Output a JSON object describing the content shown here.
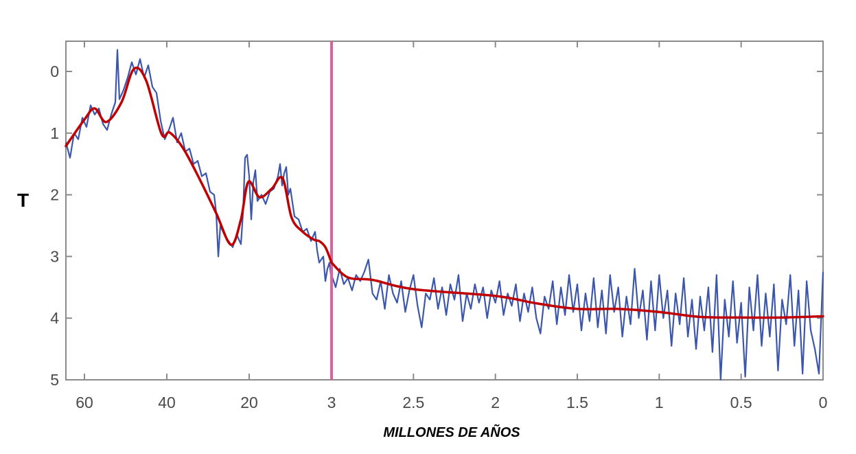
{
  "chart_data": {
    "type": "line",
    "title": "",
    "xlabel": "MILLONES DE AÑOS",
    "ylabel": "T",
    "ylim": [
      -0.5,
      5
    ],
    "y_inverted": true,
    "y_ticks": [
      "0",
      "1",
      "2",
      "3",
      "4",
      "5"
    ],
    "x_segments": [
      {
        "range": [
          64.5,
          0
        ],
        "ticks": [
          "60",
          "40",
          "20"
        ],
        "tick_values": [
          60,
          40,
          20
        ]
      },
      {
        "range": [
          3,
          0
        ],
        "ticks": [
          "3",
          "2.5",
          "2",
          "1.5",
          "1",
          "0.5",
          "0"
        ],
        "tick_values": [
          3,
          2.5,
          2,
          1.5,
          1,
          0.5,
          0
        ]
      }
    ],
    "divider_at": "3",
    "grid": false,
    "colors": {
      "raw": "#3b56aa",
      "smooth": "#c00000",
      "divider": "#e0609f",
      "axis": "#8a8a8a"
    },
    "series": [
      {
        "name": "raw-left",
        "segment": 0,
        "x": [
          64.5,
          63.5,
          62.5,
          61.5,
          60.5,
          59.5,
          58.5,
          57.5,
          56.5,
          55.5,
          54.5,
          53.5,
          52.5,
          52,
          51.5,
          50.5,
          49.5,
          48.5,
          47.5,
          46.5,
          45.5,
          44.5,
          43.5,
          42.5,
          41.5,
          40.5,
          39.5,
          38.5,
          37.5,
          36.5,
          35.5,
          34.5,
          33.5,
          32.5,
          31.5,
          30.5,
          29.5,
          28.5,
          28,
          27.5,
          27,
          26,
          25,
          24,
          23,
          22,
          21.5,
          21,
          20.5,
          20,
          19.5,
          19,
          18.5,
          18,
          17,
          16,
          15,
          14,
          13,
          12.5,
          12,
          11.5,
          11,
          10.5,
          10,
          9,
          8,
          7,
          6,
          5,
          4,
          3.5,
          3,
          2,
          1.5,
          1,
          0.5,
          0
        ],
        "y": [
          1.15,
          1.4,
          1.0,
          1.1,
          0.75,
          0.9,
          0.55,
          0.7,
          0.6,
          0.85,
          0.95,
          0.7,
          0.5,
          -0.35,
          0.45,
          0.3,
          0.1,
          -0.15,
          0.05,
          -0.2,
          0.1,
          -0.1,
          0.25,
          0.35,
          0.8,
          1.1,
          0.95,
          0.75,
          1.15,
          1.0,
          1.3,
          1.25,
          1.5,
          1.45,
          1.7,
          1.65,
          1.95,
          2.0,
          2.3,
          3.0,
          2.5,
          2.65,
          2.75,
          2.85,
          2.65,
          2.8,
          2.3,
          1.4,
          1.35,
          1.7,
          2.4,
          1.8,
          1.6,
          2.1,
          2.0,
          2.15,
          1.95,
          1.9,
          1.7,
          1.5,
          1.85,
          1.65,
          1.55,
          2.0,
          1.9,
          2.35,
          2.4,
          2.6,
          2.55,
          2.75,
          2.6,
          2.9,
          3.1,
          3.0,
          3.4,
          3.2,
          3.1,
          3.4
        ]
      },
      {
        "name": "raw-right",
        "segment": 1,
        "x_start": 3,
        "x_end": 0,
        "y": [
          3.3,
          3.5,
          3.2,
          3.45,
          3.35,
          3.55,
          3.3,
          3.4,
          3.25,
          3.05,
          3.6,
          3.7,
          3.4,
          3.85,
          3.3,
          3.6,
          3.75,
          3.4,
          3.9,
          3.55,
          3.3,
          3.8,
          4.15,
          3.6,
          3.7,
          3.35,
          3.85,
          3.5,
          3.95,
          3.45,
          3.7,
          3.3,
          4.05,
          3.6,
          3.85,
          3.45,
          3.75,
          3.5,
          4.0,
          3.55,
          3.75,
          3.4,
          3.95,
          3.6,
          3.8,
          3.45,
          4.05,
          3.6,
          3.9,
          3.5,
          4.0,
          4.25,
          3.65,
          3.85,
          3.4,
          4.1,
          3.5,
          3.95,
          3.3,
          3.9,
          3.45,
          4.2,
          3.6,
          4.05,
          3.35,
          4.15,
          3.55,
          4.25,
          3.3,
          3.9,
          3.5,
          4.3,
          3.65,
          4.1,
          3.2,
          4.0,
          3.55,
          4.35,
          3.4,
          4.2,
          3.3,
          4.0,
          3.55,
          4.45,
          3.6,
          4.1,
          3.35,
          4.3,
          3.7,
          4.5,
          3.65,
          4.2,
          3.5,
          4.55,
          3.3,
          5.0,
          3.7,
          4.3,
          3.4,
          4.4,
          3.75,
          4.95,
          3.5,
          4.2,
          3.3,
          4.45,
          3.6,
          4.3,
          3.45,
          4.85,
          3.7,
          4.1,
          3.3,
          4.45,
          3.55,
          4.9,
          3.4,
          4.2,
          4.5,
          4.9,
          3.25
        ]
      },
      {
        "name": "smooth-left",
        "segment": 0,
        "x": [
          64.5,
          60,
          57.5,
          54.7,
          51,
          48,
          45,
          41.3,
          39.3,
          36,
          32,
          28,
          24.4,
          22,
          20.2,
          17.5,
          14.5,
          11.9,
          9.7,
          7,
          4.2,
          3,
          1.5,
          0
        ],
        "y": [
          1.21,
          0.78,
          0.6,
          0.82,
          0.5,
          -0.04,
          0.15,
          1.01,
          0.99,
          1.25,
          1.75,
          2.3,
          2.81,
          2.4,
          1.79,
          2.04,
          1.9,
          1.73,
          2.37,
          2.6,
          2.73,
          2.75,
          2.85,
          3.1
        ]
      },
      {
        "name": "smooth-right",
        "segment": 1,
        "x": [
          3,
          2.9,
          2.75,
          2.5,
          2.0,
          1.75,
          1.5,
          1.25,
          1.0,
          0.75,
          0.5,
          0.25,
          0
        ],
        "y": [
          3.1,
          3.34,
          3.38,
          3.53,
          3.64,
          3.76,
          3.85,
          3.85,
          3.9,
          3.98,
          3.99,
          3.99,
          3.97
        ]
      }
    ]
  }
}
